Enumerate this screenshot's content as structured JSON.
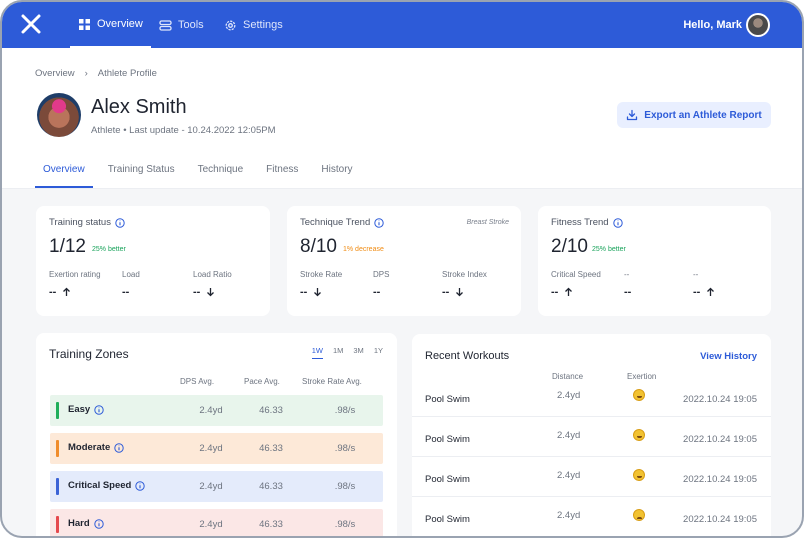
{
  "nav": {
    "items": [
      {
        "label": "Overview",
        "icon": "grid-icon",
        "active": true
      },
      {
        "label": "Tools",
        "icon": "database-icon",
        "active": false
      },
      {
        "label": "Settings",
        "icon": "gear-icon",
        "active": false
      }
    ],
    "greeting": "Hello, Mark"
  },
  "breadcrumb": [
    "Overview",
    "Athlete Profile"
  ],
  "athlete": {
    "name": "Alex Smith",
    "subtitle": "Athlete • Last update - 10.24.2022 12:05PM"
  },
  "export_label": "Export an Athlete Report",
  "tabs": [
    "Overview",
    "Training Status",
    "Technique",
    "Fitness",
    "History"
  ],
  "cards": [
    {
      "title": "Training status",
      "value": "1/12",
      "change": "25% better",
      "change_type": "better",
      "note": "",
      "metrics": [
        {
          "label": "Exertion rating",
          "value": "--",
          "arrow": "up"
        },
        {
          "label": "Load",
          "value": "--",
          "arrow": ""
        },
        {
          "label": "Load Ratio",
          "value": "--",
          "arrow": "down"
        }
      ]
    },
    {
      "title": "Technique Trend",
      "value": "8/10",
      "change": "1% decrease",
      "change_type": "decrease",
      "note": "Breast Stroke",
      "metrics": [
        {
          "label": "Stroke Rate",
          "value": "--",
          "arrow": "down"
        },
        {
          "label": "DPS",
          "value": "--",
          "arrow": ""
        },
        {
          "label": "Stroke Index",
          "value": "--",
          "arrow": "down"
        }
      ]
    },
    {
      "title": "Fitness Trend",
      "value": "2/10",
      "change": "25% better",
      "change_type": "better",
      "note": "",
      "metrics": [
        {
          "label": "Critical Speed",
          "value": "--",
          "arrow": "up"
        },
        {
          "label": "--",
          "value": "--",
          "arrow": ""
        },
        {
          "label": "--",
          "value": "--",
          "arrow": "up"
        }
      ]
    }
  ],
  "zones": {
    "title": "Training Zones",
    "ranges": [
      "1W",
      "1M",
      "3M",
      "1Y"
    ],
    "active_range": "1W",
    "headers": [
      "DPS Avg.",
      "Pace Avg.",
      "Stroke Rate Avg."
    ],
    "rows": [
      {
        "name": "Easy",
        "dps": "2.4yd",
        "pace": "46.33",
        "stroke": ".98/s",
        "color": "#1fae5a",
        "bg": "#e8f5ec"
      },
      {
        "name": "Moderate",
        "dps": "2.4yd",
        "pace": "46.33",
        "stroke": ".98/s",
        "color": "#f08c2a",
        "bg": "#fde9d8"
      },
      {
        "name": "Critical Speed",
        "dps": "2.4yd",
        "pace": "46.33",
        "stroke": ".98/s",
        "color": "#3b63d6",
        "bg": "#e4ebfb"
      },
      {
        "name": "Hard",
        "dps": "2.4yd",
        "pace": "46.33",
        "stroke": ".98/s",
        "color": "#e5484d",
        "bg": "#fbe7e6"
      }
    ]
  },
  "workouts": {
    "title": "Recent Workouts",
    "link": "View History",
    "headers": [
      "Distance",
      "Exertion"
    ],
    "rows": [
      {
        "name": "Pool Swim",
        "distance": "2.4yd",
        "exertion": "grinning",
        "date": "2022.10.24 19:05"
      },
      {
        "name": "Pool Swim",
        "distance": "2.4yd",
        "exertion": "smiling",
        "date": "2022.10.24 19:05"
      },
      {
        "name": "Pool Swim",
        "distance": "2.4yd",
        "exertion": "slight-smile",
        "date": "2022.10.24 19:05"
      },
      {
        "name": "Pool Swim",
        "distance": "2.4yd",
        "exertion": "tired",
        "date": "2022.10.24 19:05"
      }
    ]
  },
  "colors": {
    "brand": "#2d5bd8",
    "better": "#19a35b",
    "decrease": "#f08c14"
  }
}
